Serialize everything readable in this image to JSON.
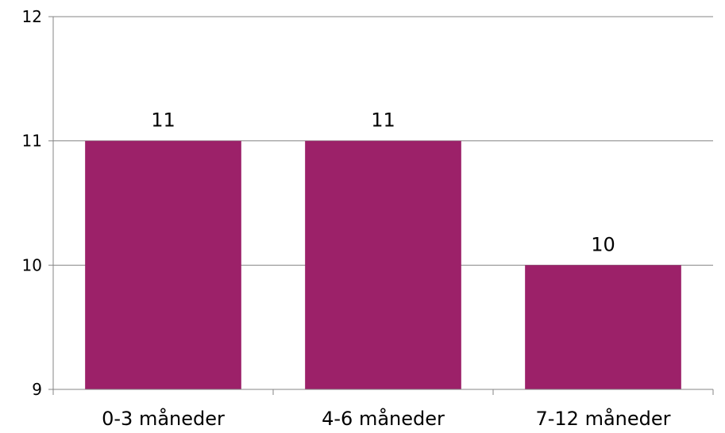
{
  "chart_data": {
    "type": "bar",
    "categories": [
      "0-3 måneder",
      "4-6 måneder",
      "7-12 måneder"
    ],
    "values": [
      11,
      11,
      10
    ],
    "data_labels": [
      "11",
      "11",
      "10"
    ],
    "ylim": [
      9,
      12
    ],
    "yticks": [
      9,
      10,
      11,
      12
    ],
    "ytick_labels": [
      "9",
      "10",
      "11",
      "12"
    ],
    "grid": true,
    "legend": "none",
    "colors": {
      "bar": "#9C2169",
      "grid": "#868686",
      "axis": "#868686"
    }
  }
}
